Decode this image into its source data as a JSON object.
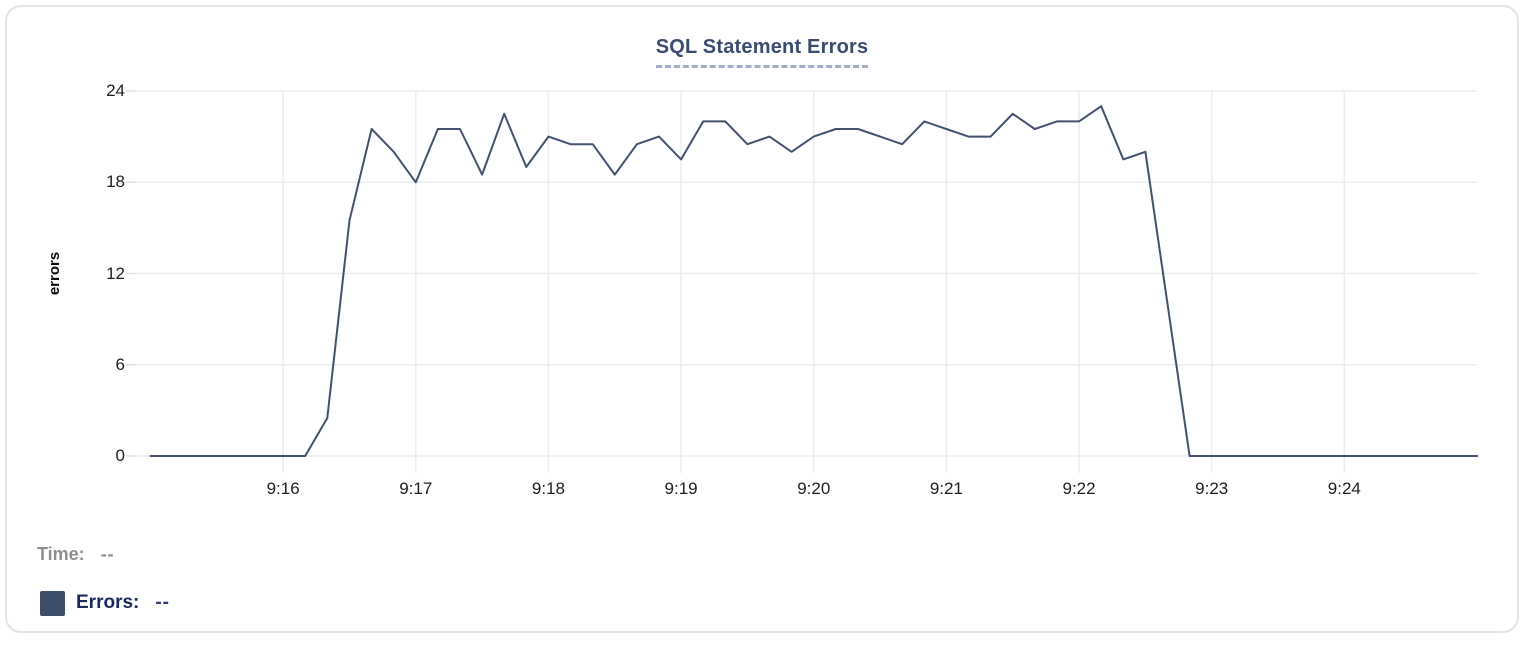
{
  "legend": {
    "time_label": "Time:",
    "time_value": "--",
    "errors_label": "Errors:",
    "errors_value": "--",
    "swatch_color": "#3e4d68"
  },
  "colors": {
    "line": "#41516f",
    "gridline": "#ececec",
    "tick": "#dedede",
    "title": "#394b6e"
  },
  "chart_data": {
    "type": "line",
    "title": "SQL Statement Errors",
    "xlabel": "",
    "ylabel": "errors",
    "ylim": [
      0,
      24
    ],
    "y_ticks": [
      0,
      6,
      12,
      18,
      24
    ],
    "x_tick_labels": [
      "9:16",
      "9:17",
      "9:18",
      "9:19",
      "9:20",
      "9:21",
      "9:22",
      "9:23",
      "9:24"
    ],
    "x_axis_range": [
      "9:14:53",
      "9:25:00"
    ],
    "grid": true,
    "legend_position": "bottom-left",
    "series": [
      {
        "name": "Errors",
        "color": "#41516f",
        "times": [
          "9:15:00",
          "9:15:10",
          "9:15:20",
          "9:15:30",
          "9:15:40",
          "9:15:50",
          "9:16:00",
          "9:16:10",
          "9:16:20",
          "9:16:30",
          "9:16:40",
          "9:16:50",
          "9:17:00",
          "9:17:10",
          "9:17:20",
          "9:17:30",
          "9:17:40",
          "9:17:50",
          "9:18:00",
          "9:18:10",
          "9:18:20",
          "9:18:30",
          "9:18:40",
          "9:18:50",
          "9:19:00",
          "9:19:10",
          "9:19:20",
          "9:19:30",
          "9:19:40",
          "9:19:50",
          "9:20:00",
          "9:20:10",
          "9:20:20",
          "9:20:30",
          "9:20:40",
          "9:20:50",
          "9:21:00",
          "9:21:10",
          "9:21:20",
          "9:21:30",
          "9:21:40",
          "9:21:50",
          "9:22:00",
          "9:22:10",
          "9:22:20",
          "9:22:30",
          "9:22:40",
          "9:22:50",
          "9:23:00",
          "9:23:10",
          "9:23:20",
          "9:23:30",
          "9:23:40",
          "9:23:50",
          "9:24:00",
          "9:24:10",
          "9:24:20",
          "9:24:30",
          "9:24:40",
          "9:24:50",
          "9:25:00"
        ],
        "values": [
          0,
          0,
          0,
          0,
          0,
          0,
          0,
          0,
          2.5,
          15.5,
          21.5,
          20,
          18,
          21.5,
          21.5,
          18.5,
          22.5,
          19,
          21,
          20.5,
          20.5,
          18.5,
          20.5,
          21,
          19.5,
          22,
          22,
          20.5,
          21,
          20,
          21,
          21.5,
          21.5,
          21,
          20.5,
          22,
          21.5,
          21,
          21,
          22.5,
          21.5,
          22,
          22,
          23,
          19.5,
          20,
          10,
          0,
          0,
          0,
          0,
          0,
          0,
          0,
          0,
          0,
          0,
          0,
          0,
          0,
          0
        ]
      }
    ]
  }
}
